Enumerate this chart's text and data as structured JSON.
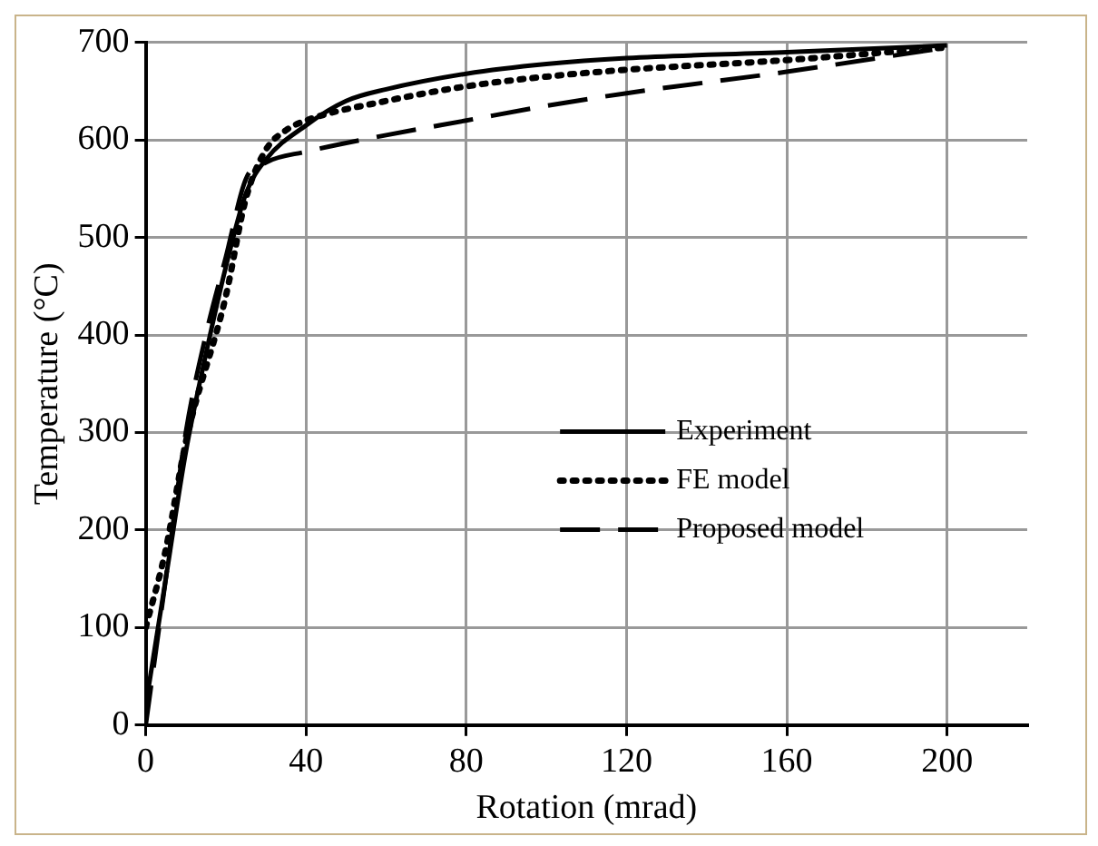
{
  "chart_data": {
    "type": "line",
    "xlabel": "Rotation (mrad)",
    "ylabel": "Temperature (°C)",
    "xlim": [
      0,
      220
    ],
    "xticks": [
      0,
      40,
      80,
      120,
      160,
      200
    ],
    "ylim": [
      0,
      700
    ],
    "yticks": [
      0,
      100,
      200,
      300,
      400,
      500,
      600,
      700
    ],
    "grid": true,
    "legend": "right",
    "marker": "none",
    "series": [
      {
        "name": "Experiment",
        "color": "#000000",
        "line_style": "solid",
        "x": [
          0,
          5,
          10,
          15,
          20,
          25,
          30,
          40,
          50,
          60,
          80,
          100,
          120,
          160,
          200
        ],
        "values": [
          20,
          150,
          280,
          380,
          470,
          545,
          580,
          615,
          640,
          652,
          668,
          678,
          684,
          690,
          697
        ]
      },
      {
        "name": "FE model",
        "color": "#000000",
        "line_style": "dotted",
        "x": [
          0,
          5,
          10,
          20,
          25,
          30,
          35,
          40,
          60,
          80,
          100,
          120,
          160,
          200
        ],
        "values": [
          100,
          180,
          290,
          440,
          540,
          590,
          610,
          620,
          640,
          655,
          665,
          672,
          682,
          695
        ]
      },
      {
        "name": "Proposed model",
        "color": "#000000",
        "line_style": "dashed",
        "x": [
          0,
          5,
          10,
          15,
          20,
          25,
          30,
          40,
          60,
          80,
          100,
          120,
          160,
          200
        ],
        "values": [
          0,
          150,
          300,
          400,
          480,
          560,
          577,
          588,
          605,
          620,
          635,
          648,
          670,
          695
        ]
      }
    ]
  }
}
